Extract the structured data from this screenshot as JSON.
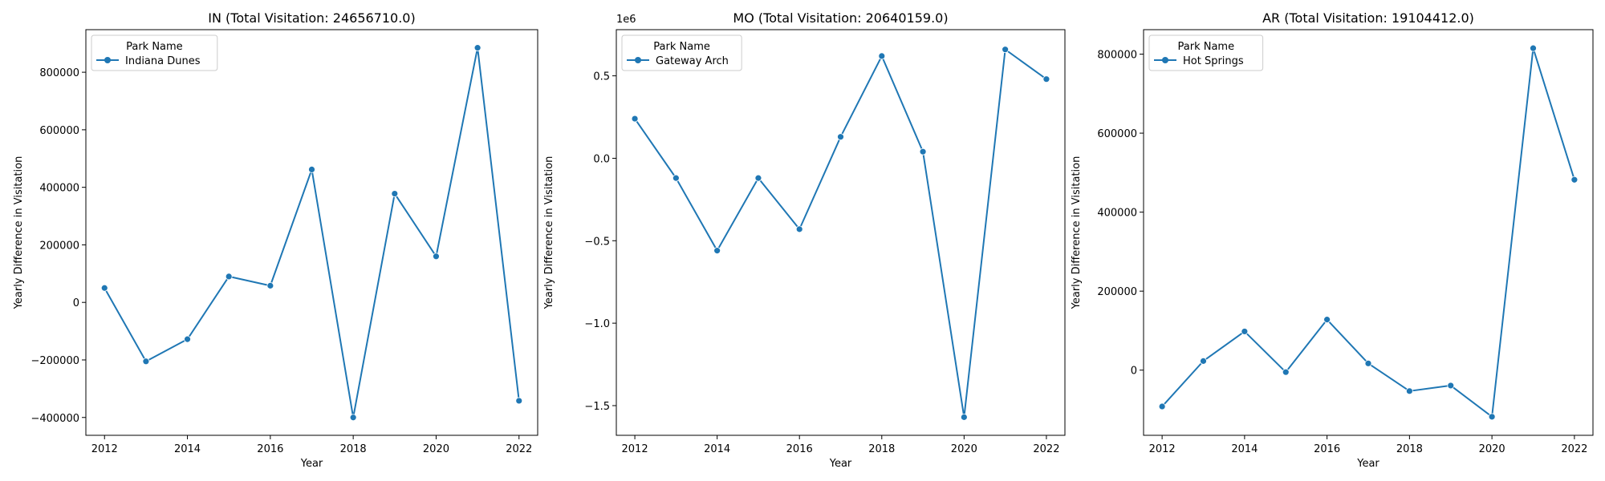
{
  "chart_data": [
    {
      "type": "line",
      "title": "IN (Total Visitation: 24656710.0)",
      "xlabel": "Year",
      "ylabel": "Yearly Difference in Visitation",
      "legend_title": "Park Name",
      "legend_position": "top-left",
      "grid": false,
      "color": "#1f77b4",
      "x": [
        2012,
        2013,
        2014,
        2015,
        2016,
        2017,
        2018,
        2019,
        2020,
        2021,
        2022
      ],
      "series": [
        {
          "name": "Indiana Dunes",
          "values": [
            50000,
            -205000,
            -128000,
            90000,
            58000,
            462000,
            -400000,
            378000,
            160000,
            885000,
            -342000
          ]
        }
      ],
      "xlim": [
        2011.55,
        2022.45
      ],
      "ylim": [
        -462000,
        948000
      ],
      "xticks": [
        2012,
        2014,
        2016,
        2018,
        2020,
        2022
      ],
      "yticks": [
        -400000,
        -200000,
        0,
        200000,
        400000,
        600000,
        800000
      ],
      "ytick_labels": [
        "−400000",
        "−200000",
        "0",
        "200000",
        "400000",
        "600000",
        "800000"
      ],
      "offset_text": ""
    },
    {
      "type": "line",
      "title": "MO (Total Visitation: 20640159.0)",
      "xlabel": "Year",
      "ylabel": "Yearly Difference in Visitation",
      "legend_title": "Park Name",
      "legend_position": "top-left",
      "grid": false,
      "color": "#1f77b4",
      "x": [
        2012,
        2013,
        2014,
        2015,
        2016,
        2017,
        2018,
        2019,
        2020,
        2021,
        2022
      ],
      "series": [
        {
          "name": "Gateway Arch",
          "values": [
            0.24,
            -0.12,
            -0.56,
            -0.12,
            -0.43,
            0.13,
            0.62,
            0.04,
            -1.57,
            0.66,
            0.48
          ]
        }
      ],
      "xlim": [
        2011.55,
        2022.45
      ],
      "ylim": [
        -1.68,
        0.78
      ],
      "xticks": [
        2012,
        2014,
        2016,
        2018,
        2020,
        2022
      ],
      "yticks": [
        -1.5,
        -1.0,
        -0.5,
        0.0,
        0.5
      ],
      "ytick_labels": [
        "−1.5",
        "−1.0",
        "−0.5",
        "0.0",
        "0.5"
      ],
      "offset_text": "1e6"
    },
    {
      "type": "line",
      "title": "AR (Total Visitation: 19104412.0)",
      "xlabel": "Year",
      "ylabel": "Yearly Difference in Visitation",
      "legend_title": "Park Name",
      "legend_position": "top-left",
      "grid": false,
      "color": "#1f77b4",
      "x": [
        2012,
        2013,
        2014,
        2015,
        2016,
        2017,
        2018,
        2019,
        2020,
        2021,
        2022
      ],
      "series": [
        {
          "name": "Hot Springs",
          "values": [
            -92000,
            23000,
            98000,
            -5000,
            128000,
            17000,
            -53000,
            -39000,
            -118000,
            815000,
            482000
          ]
        }
      ],
      "xlim": [
        2011.55,
        2022.45
      ],
      "ylim": [
        -165000,
        862000
      ],
      "xticks": [
        2012,
        2014,
        2016,
        2018,
        2020,
        2022
      ],
      "yticks": [
        0,
        200000,
        400000,
        600000,
        800000
      ],
      "ytick_labels": [
        "0",
        "200000",
        "400000",
        "600000",
        "800000"
      ],
      "offset_text": ""
    }
  ]
}
